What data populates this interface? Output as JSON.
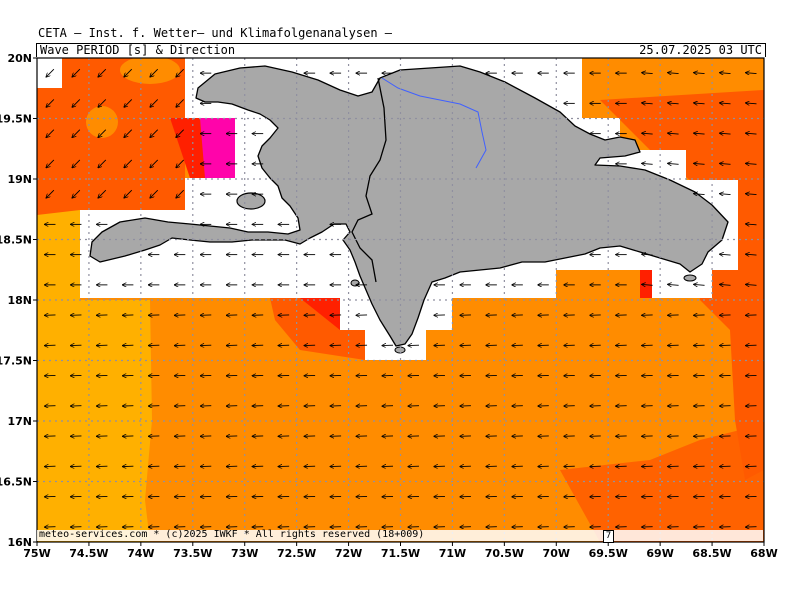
{
  "header": {
    "title": "CETA — Inst. f. Wetter— und Klimafolgenanalysen —",
    "subtitle": "Wave PERIOD [s] & Direction",
    "timestamp": "25.07.2025 03 UTC"
  },
  "footer": {
    "credit": "meteo-services.com * (c)2025 IWKF * All rights reserved (18+009)",
    "scale_label": "7"
  },
  "axes": {
    "lon_labels": [
      "75W",
      "74.5W",
      "74W",
      "73.5W",
      "73W",
      "72.5W",
      "72W",
      "71.5W",
      "71W",
      "70.5W",
      "70W",
      "69.5W",
      "69W",
      "68.5W",
      "68W"
    ],
    "lat_labels": [
      "20N",
      "19.5N",
      "19N",
      "18.5N",
      "18N",
      "17.5N",
      "17N",
      "16.5N",
      "16N"
    ],
    "lon_range": [
      -75,
      -68
    ],
    "lat_range": [
      16,
      20
    ]
  },
  "colors": {
    "period_low": "#ffb000",
    "period_mid": "#ff8c00",
    "period_high": "#ff5a00",
    "period_higher": "#ff2000",
    "period_max": "#ff00c8",
    "land": "#a8a8a8",
    "river": "#4060ff",
    "grid": "#9090a0"
  },
  "icons": {
    "arrow": "wave-direction-arrow-icon"
  }
}
